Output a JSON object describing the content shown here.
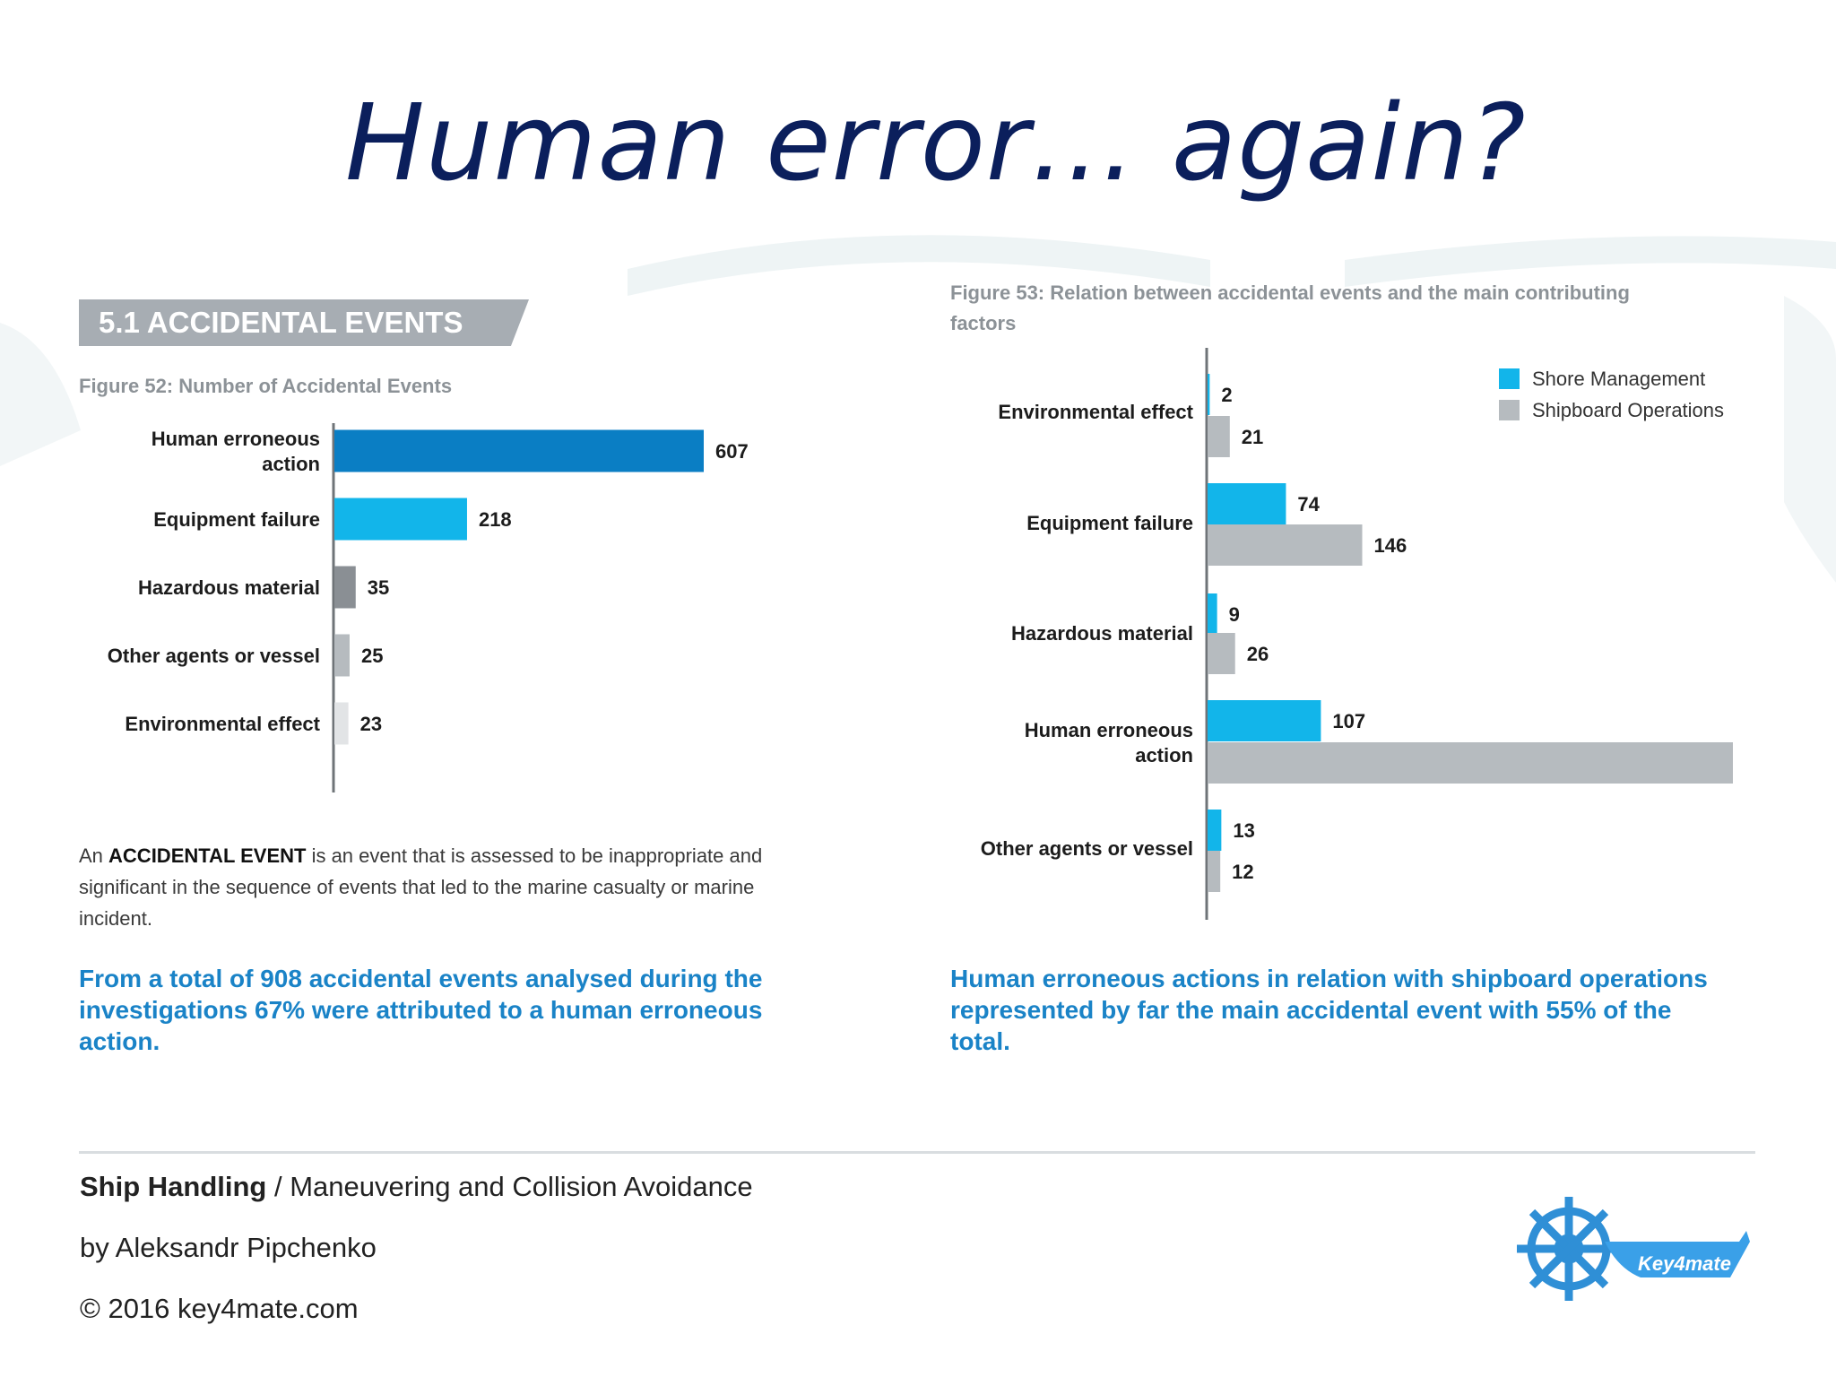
{
  "title": "Human error… again?",
  "section_banner": "5.1 ACCIDENTAL EVENTS",
  "chart_data": [
    {
      "type": "bar",
      "orientation": "horizontal",
      "title": "Figure 52: Number of Accidental Events",
      "categories": [
        "Human erroneous action",
        "Equipment failure",
        "Hazardous material",
        "Other agents or vessel",
        "Environmental effect"
      ],
      "category_lines": [
        [
          "Human erroneous",
          "action"
        ],
        [
          "Equipment failure"
        ],
        [
          "Hazardous material"
        ],
        [
          "Other agents or vessel"
        ],
        [
          "Environmental effect"
        ]
      ],
      "values": [
        607,
        218,
        35,
        25,
        23
      ],
      "colors": [
        "#0a7ec4",
        "#12b5ea",
        "#8a8f94",
        "#b6bbbf",
        "#e2e4e6"
      ],
      "xlim": [
        0,
        607
      ]
    },
    {
      "type": "bar",
      "orientation": "horizontal",
      "title_lines": [
        "Figure 53: Relation between accidental events and the main contributing",
        "factors"
      ],
      "categories": [
        "Environmental effect",
        "Equipment failure",
        "Hazardous material",
        "Human erroneous action",
        "Other agents or vessel"
      ],
      "category_lines": [
        [
          "Environmental effect"
        ],
        [
          "Equipment failure"
        ],
        [
          "Hazardous material"
        ],
        [
          "Human erroneous",
          "action"
        ],
        [
          "Other agents or vessel"
        ]
      ],
      "series": [
        {
          "name": "Shore Management",
          "values": [
            2,
            74,
            9,
            107,
            null
          ],
          "color": "#12b5ea"
        },
        {
          "name": "Shipboard Operations",
          "values": [
            21,
            146,
            26,
            496,
            12
          ],
          "color": "#b6bbbf"
        }
      ],
      "value_labels": [
        [
          "2",
          "21"
        ],
        [
          "74",
          "146"
        ],
        [
          "9",
          "26"
        ],
        [
          "107",
          ""
        ],
        [
          "13",
          "12"
        ]
      ],
      "shore_other_value": 13,
      "legend_position": "top-right",
      "xlim": [
        0,
        496
      ]
    }
  ],
  "description": {
    "prefix": "An ",
    "term": "ACCIDENTAL EVENT",
    "line1_rest": " is an event that is assessed to be inappropriate and",
    "line2": "significant in the sequence of events that led to the marine casualty or marine",
    "line3": "incident."
  },
  "left_highlight": [
    "From a total of 908 accidental events analysed during the",
    "investigations 67% were attributed to a human erroneous",
    "action."
  ],
  "right_highlight": [
    "Human erroneous actions in relation with shipboard operations",
    "represented by far the main accidental event with 55% of the",
    "total."
  ],
  "footer": {
    "course_bold": "Ship Handling",
    "course_rest": " / Maneuvering and Collision  Avoidance",
    "author": "by Aleksandr Pipchenko",
    "copyright": "© 2016 key4mate.com",
    "logo_text": "Key4mate"
  },
  "colors": {
    "title": "#0b1f5c",
    "accent": "#1a83c7",
    "banner": "#a7adb3"
  }
}
